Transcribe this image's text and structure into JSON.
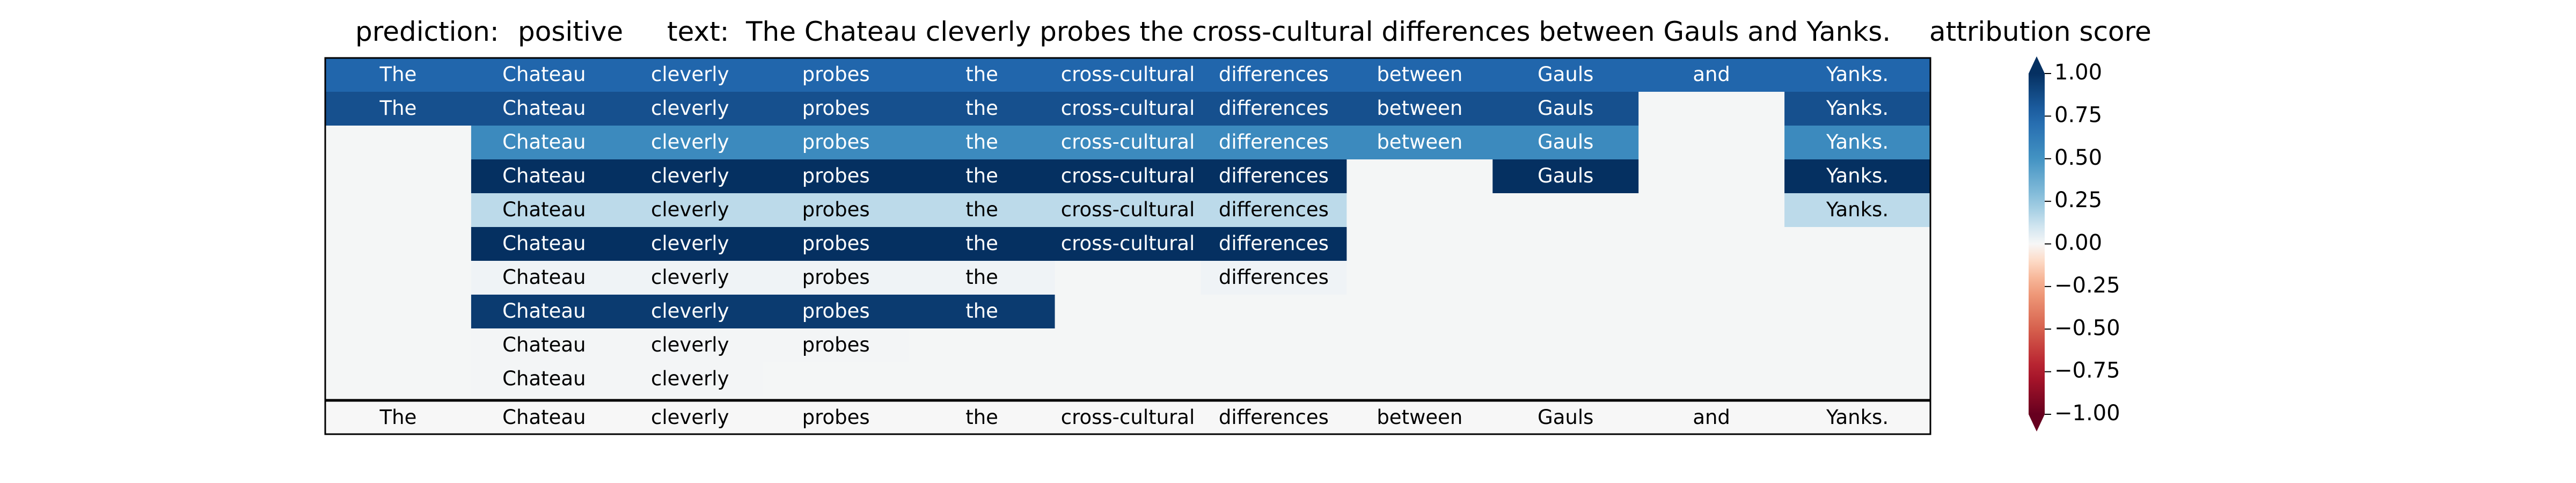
{
  "header": {
    "prediction_label": "prediction:",
    "prediction_value": "positive",
    "text_label": "text:",
    "text_value": "The Chateau cleverly probes the cross-cultural differences between Gauls and Yanks.",
    "attribution_title": "attribution score"
  },
  "chart_data": {
    "type": "heatmap",
    "columns": [
      "The",
      "Chateau",
      "cleverly",
      "probes",
      "the",
      "cross-cultural",
      "differences",
      "between",
      "Gauls",
      "and",
      "Yanks."
    ],
    "rows": [
      [
        0.75,
        0.75,
        0.75,
        0.75,
        0.75,
        0.75,
        0.75,
        0.75,
        0.75,
        0.75,
        0.75
      ],
      [
        0.85,
        0.85,
        0.85,
        0.85,
        0.85,
        0.85,
        0.85,
        0.85,
        0.85,
        null,
        0.85
      ],
      [
        null,
        0.55,
        0.55,
        0.55,
        0.55,
        0.55,
        0.55,
        0.55,
        0.55,
        null,
        0.55
      ],
      [
        null,
        1.0,
        1.0,
        1.0,
        1.0,
        1.0,
        1.0,
        null,
        1.0,
        null,
        1.0
      ],
      [
        null,
        0.15,
        0.15,
        0.15,
        0.15,
        0.15,
        0.15,
        null,
        null,
        null,
        0.15
      ],
      [
        null,
        1.0,
        1.0,
        1.0,
        1.0,
        1.0,
        1.0,
        null,
        null,
        null,
        null
      ],
      [
        null,
        0.02,
        0.02,
        0.02,
        0.02,
        null,
        0.02,
        null,
        null,
        null,
        null
      ],
      [
        null,
        0.95,
        0.95,
        0.95,
        0.95,
        null,
        null,
        null,
        null,
        null,
        null
      ],
      [
        null,
        0.01,
        0.01,
        0.01,
        null,
        null,
        null,
        null,
        null,
        null,
        null
      ],
      [
        null,
        0.01,
        0.01,
        null,
        null,
        null,
        null,
        null,
        null,
        null,
        null
      ]
    ],
    "baseline_row": [
      "The",
      "Chateau",
      "cleverly",
      "probes",
      "the",
      "cross-cultural",
      "differences",
      "between",
      "Gauls",
      "and",
      "Yanks."
    ],
    "baseline_value": 0.0,
    "colorbar": {
      "colormap": "RdBu",
      "vmin": -1.0,
      "vmax": 1.0,
      "ticks": [
        1.0,
        0.75,
        0.5,
        0.25,
        0.0,
        -0.25,
        -0.5,
        -0.75,
        -1.0
      ],
      "tick_labels": [
        "1.00",
        "0.75",
        "0.50",
        "0.25",
        "0.00",
        "−0.25",
        "−0.50",
        "−0.75",
        "−1.00"
      ],
      "extend": "both"
    },
    "colors": {
      "empty_cell": "#f4f6f6",
      "text_light": "#ffffff",
      "text_dark": "#000000",
      "frame": "#000000"
    }
  }
}
